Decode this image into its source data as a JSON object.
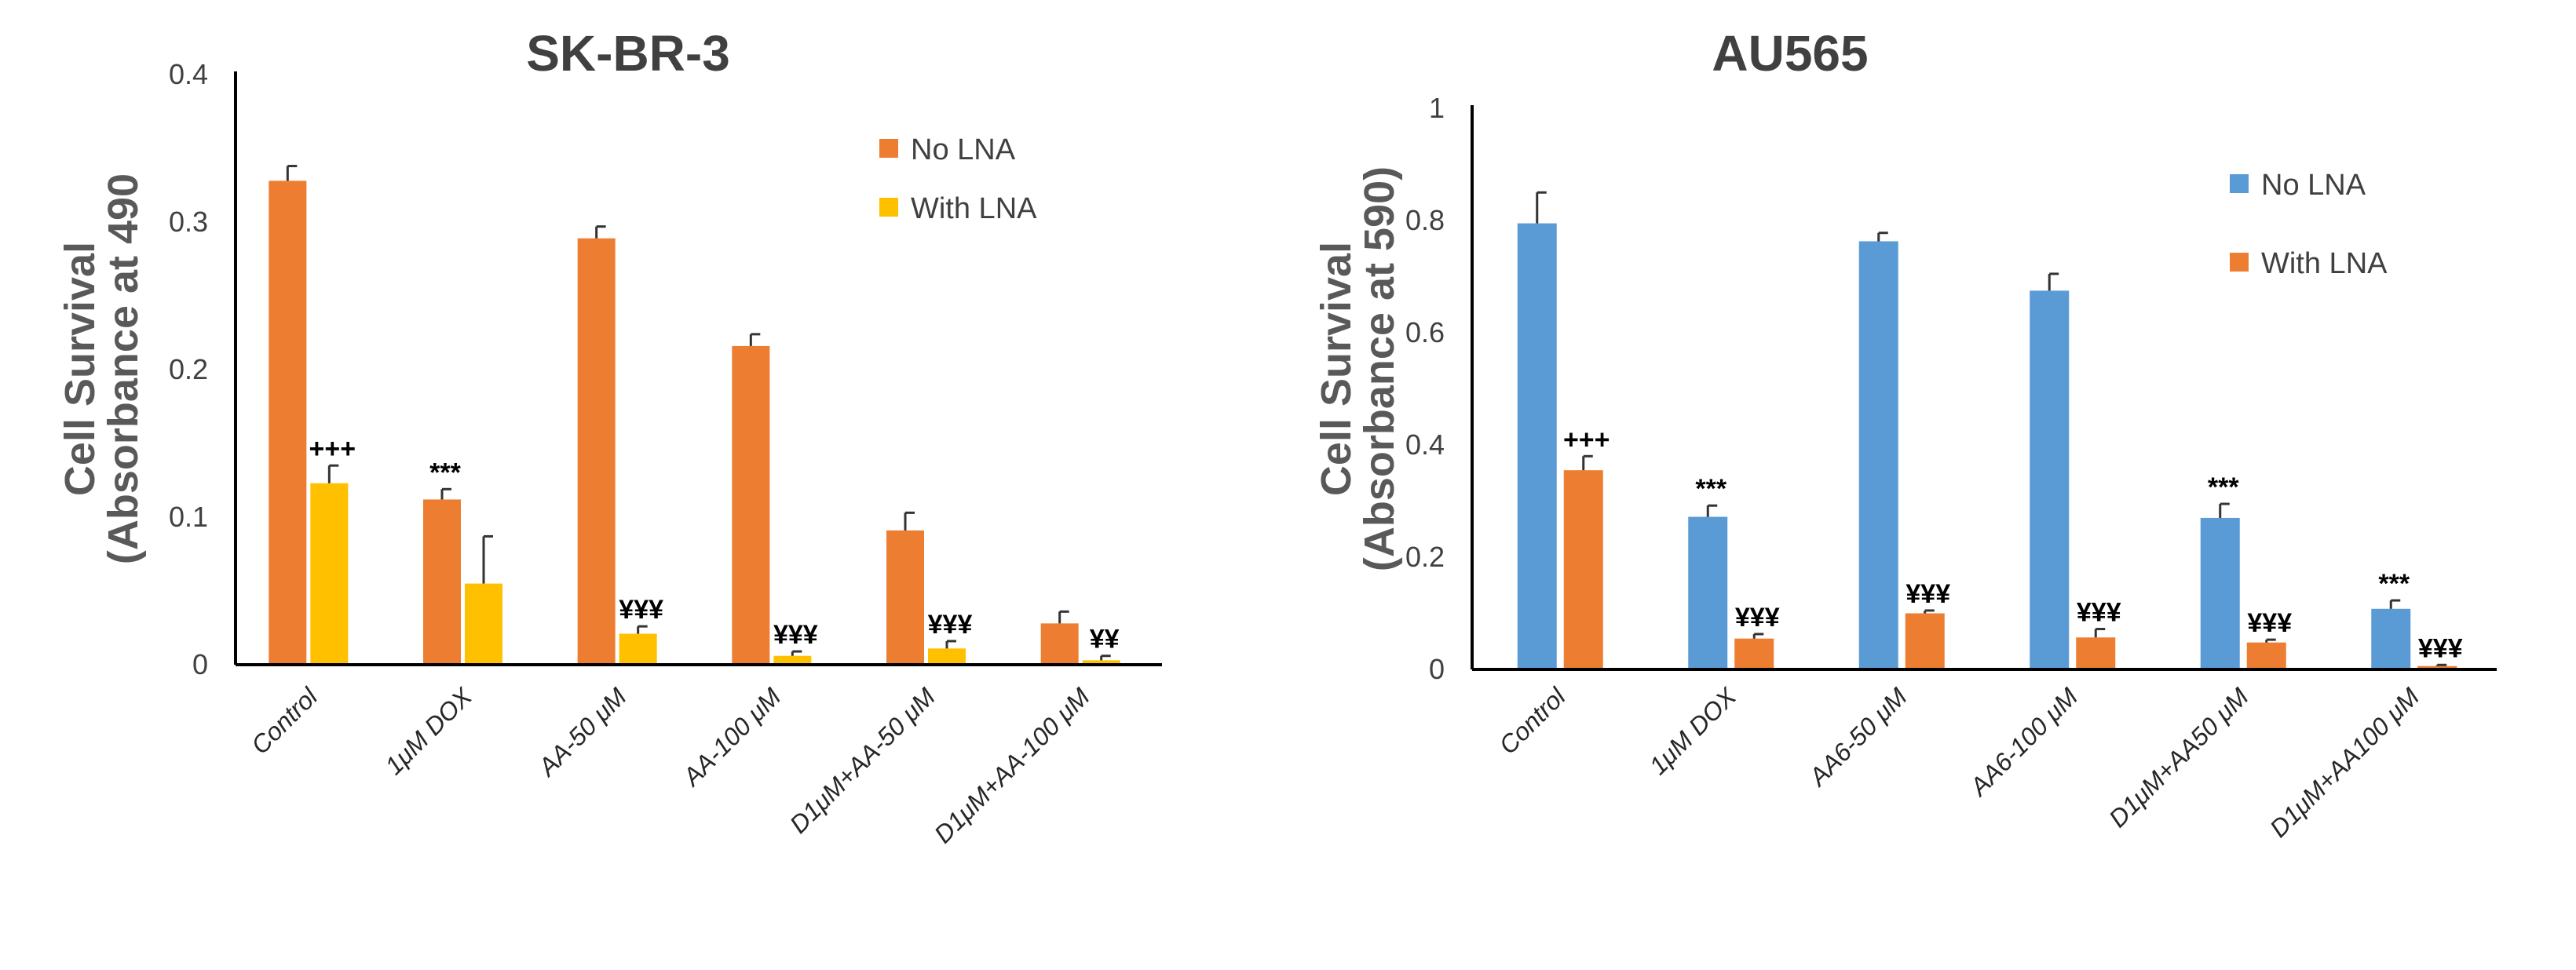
{
  "colors": {
    "orange": "#ED7D31",
    "yellow": "#FFC000",
    "blue": "#5B9BD5"
  },
  "chart_data": [
    {
      "type": "bar",
      "title": "SK-BR-3",
      "ylabel_line1": "Cell Survival",
      "ylabel_line2": "(Absorbance at 490",
      "xlabel": "",
      "ylim": [
        0,
        0.4
      ],
      "yticks": [
        "0",
        "0.1",
        "0.2",
        "0.3",
        "0.4"
      ],
      "legend_position": "top-right",
      "categories": [
        "Control",
        "1μM DOX",
        "AA-50 μM",
        "AA-100 μM",
        "D1μM+AA-50 μM",
        "D1μM+AA-100 μM"
      ],
      "series": [
        {
          "name": "No LNA",
          "color": "#ED7D31",
          "values": [
            0.328,
            0.112,
            0.289,
            0.216,
            0.091,
            0.028
          ],
          "errors": [
            0.01,
            0.007,
            0.008,
            0.008,
            0.012,
            0.008
          ]
        },
        {
          "name": "With LNA",
          "color": "#FFC000",
          "values": [
            0.123,
            0.055,
            0.021,
            0.006,
            0.011,
            0.003
          ],
          "errors": [
            0.012,
            0.032,
            0.005,
            0.003,
            0.005,
            0.003
          ]
        }
      ],
      "annotations": [
        {
          "category": 0,
          "series": 1,
          "text": "+++"
        },
        {
          "category": 1,
          "series": 0,
          "text": "***"
        },
        {
          "category": 2,
          "series": 1,
          "text": "¥¥¥"
        },
        {
          "category": 3,
          "series": 1,
          "text": "¥¥¥"
        },
        {
          "category": 4,
          "series": 1,
          "text": "¥¥¥"
        },
        {
          "category": 5,
          "series": 1,
          "text": "¥¥"
        }
      ]
    },
    {
      "type": "bar",
      "title": "AU565",
      "ylabel_line1": "Cell Survival",
      "ylabel_line2": "(Absorbance at 590)",
      "xlabel": "",
      "ylim": [
        0,
        1
      ],
      "yticks": [
        "0",
        "0.2",
        "0.4",
        "0.6",
        "0.8",
        "1"
      ],
      "legend_position": "top-right",
      "categories": [
        "Control",
        "1μM DOX",
        "AA6-50 μM",
        "AA6-100 μM",
        "D1μM+AA50 μM",
        "D1μM+AA100 μM"
      ],
      "series": [
        {
          "name": "No LNA",
          "color": "#5B9BD5",
          "values": [
            0.795,
            0.272,
            0.763,
            0.675,
            0.27,
            0.108
          ],
          "errors": [
            0.055,
            0.02,
            0.015,
            0.03,
            0.025,
            0.015
          ]
        },
        {
          "name": "With LNA",
          "color": "#ED7D31",
          "values": [
            0.355,
            0.055,
            0.1,
            0.057,
            0.048,
            0.006
          ],
          "errors": [
            0.025,
            0.008,
            0.005,
            0.015,
            0.005,
            0.002
          ]
        }
      ],
      "annotations": [
        {
          "category": 0,
          "series": 1,
          "text": "+++"
        },
        {
          "category": 1,
          "series": 0,
          "text": "***"
        },
        {
          "category": 1,
          "series": 1,
          "text": "¥¥¥"
        },
        {
          "category": 2,
          "series": 1,
          "text": "¥¥¥"
        },
        {
          "category": 3,
          "series": 1,
          "text": "¥¥¥"
        },
        {
          "category": 4,
          "series": 0,
          "text": "***"
        },
        {
          "category": 4,
          "series": 1,
          "text": "¥¥¥"
        },
        {
          "category": 5,
          "series": 0,
          "text": "***"
        },
        {
          "category": 5,
          "series": 1,
          "text": "¥¥¥"
        }
      ]
    }
  ]
}
